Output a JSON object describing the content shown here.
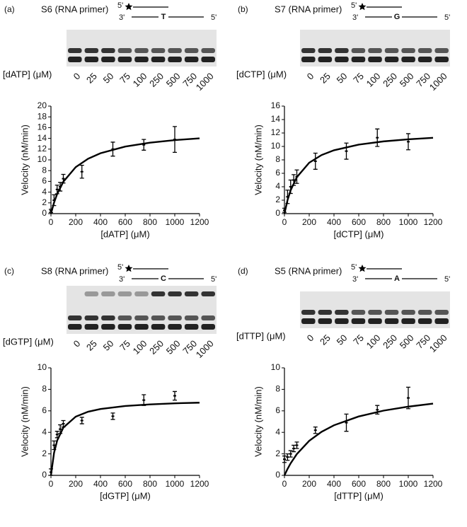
{
  "chart_data": [
    {
      "type": "scatter",
      "panel": "(a)",
      "primer": "S6 (RNA primer)",
      "template": {
        "top_5": "5'",
        "bottom_3": "3'",
        "base": "T",
        "bottom_5": "5'"
      },
      "gel_label": "[dATP] (μM)",
      "lanes": [
        "0",
        "25",
        "50",
        "75",
        "100",
        "250",
        "500",
        "750",
        "1000"
      ],
      "x_label": "[dATP] (μM)",
      "y_label": "Velocity (nM/min)",
      "x": [
        0,
        25,
        50,
        75,
        100,
        250,
        500,
        750,
        1000
      ],
      "values": [
        0.5,
        2.5,
        4.5,
        5,
        6.5,
        7.8,
        12,
        12.8,
        13.8
      ],
      "errors": [
        0.3,
        1,
        0.8,
        0.8,
        0.8,
        1.2,
        1.3,
        1,
        2.4
      ],
      "fit_x": [
        0,
        25,
        50,
        100,
        200,
        300,
        400,
        600,
        800,
        1000,
        1200
      ],
      "fit_values": [
        0,
        2.05,
        3.64,
        5.93,
        8.65,
        10.21,
        11.23,
        12.47,
        13.2,
        13.68,
        14.01
      ],
      "xlim": [
        0,
        1200
      ],
      "xticks": [
        0,
        200,
        400,
        600,
        800,
        1000,
        1200
      ],
      "ylim": [
        0,
        20
      ],
      "yticks": [
        0,
        2,
        4,
        6,
        8,
        10,
        12,
        14,
        16,
        18,
        20
      ],
      "color": "#000000"
    },
    {
      "type": "scatter",
      "panel": "(b)",
      "primer": "S7 (RNA primer)",
      "template": {
        "top_5": "5'",
        "bottom_3": "3'",
        "base": "G",
        "bottom_5": "5'"
      },
      "gel_label": "[dCTP] (μM)",
      "lanes": [
        "0",
        "25",
        "50",
        "75",
        "100",
        "250",
        "500",
        "750",
        "1000"
      ],
      "x_label": "[dCTP] (μM)",
      "y_label": "Velocity (nM/min)",
      "x": [
        0,
        25,
        50,
        75,
        100,
        250,
        500,
        750,
        1000
      ],
      "values": [
        0.5,
        2.5,
        4,
        5,
        5.5,
        7.8,
        9.3,
        11.3,
        10.7
      ],
      "errors": [
        0.3,
        1,
        1,
        0.8,
        1,
        1.2,
        1.2,
        1.3,
        1.2
      ],
      "fit_x": [
        0,
        25,
        50,
        100,
        200,
        300,
        400,
        600,
        800,
        1000,
        1200
      ],
      "fit_values": [
        0,
        2.02,
        3.47,
        5.43,
        7.58,
        8.72,
        9.43,
        10.27,
        10.75,
        11.06,
        11.28
      ],
      "xlim": [
        0,
        1200
      ],
      "xticks": [
        0,
        200,
        400,
        600,
        800,
        1000,
        1200
      ],
      "ylim": [
        0,
        16
      ],
      "yticks": [
        0,
        2,
        4,
        6,
        8,
        10,
        12,
        14,
        16
      ],
      "color": "#000000"
    },
    {
      "type": "scatter",
      "panel": "(c)",
      "primer": "S8 (RNA primer)",
      "template": {
        "top_5": "5'",
        "bottom_3": "3'",
        "base": "C",
        "bottom_5": "5'"
      },
      "gel_label": "[dGTP] (μM)",
      "lanes": [
        "0",
        "25",
        "50",
        "75",
        "100",
        "250",
        "500",
        "750",
        "1000"
      ],
      "x_label": "[dGTP] (μM)",
      "y_label": "Velocity (nM/min)",
      "x": [
        0,
        25,
        50,
        75,
        100,
        250,
        500,
        750,
        1000
      ],
      "values": [
        0.3,
        2.8,
        3.8,
        4.3,
        4.8,
        5.1,
        5.5,
        7,
        7.4
      ],
      "errors": [
        0.3,
        0.4,
        0.3,
        0.4,
        0.3,
        0.3,
        0.3,
        0.5,
        0.4
      ],
      "fit_x": [
        0,
        25,
        50,
        100,
        200,
        300,
        400,
        600,
        800,
        1000,
        1200
      ],
      "fit_values": [
        0,
        2.09,
        3.23,
        4.44,
        5.46,
        5.92,
        6.17,
        6.45,
        6.6,
        6.7,
        6.76
      ],
      "xlim": [
        0,
        1200
      ],
      "xticks": [
        0,
        200,
        400,
        600,
        800,
        1000,
        1200
      ],
      "ylim": [
        0,
        10
      ],
      "yticks": [
        0,
        2,
        4,
        6,
        8,
        10
      ],
      "color": "#000000"
    },
    {
      "type": "scatter",
      "panel": "(d)",
      "primer": "S5 (RNA primer)",
      "template": {
        "top_5": "5'",
        "bottom_3": "3'",
        "base": "A",
        "bottom_5": "5'"
      },
      "gel_label": "[dTTP] (μM)",
      "lanes": [
        "0",
        "25",
        "50",
        "75",
        "100",
        "250",
        "500",
        "750",
        "1000"
      ],
      "x_label": "[dTTP] (μM)",
      "y_label": "Velocity (nM/min)",
      "x": [
        0,
        25,
        50,
        75,
        100,
        250,
        500,
        750,
        1000
      ],
      "values": [
        1.5,
        1.7,
        2,
        2.5,
        2.8,
        4.2,
        4.9,
        6.1,
        7.2
      ],
      "errors": [
        0.3,
        0.3,
        0.3,
        0.3,
        0.3,
        0.3,
        0.8,
        0.4,
        1
      ],
      "fit_x": [
        0,
        25,
        50,
        100,
        200,
        300,
        400,
        600,
        800,
        1000,
        1200
      ],
      "fit_values": [
        0,
        0.6,
        1.12,
        1.98,
        3.21,
        4.05,
        4.66,
        5.48,
        6.02,
        6.39,
        6.67
      ],
      "xlim": [
        0,
        1200
      ],
      "xticks": [
        0,
        200,
        400,
        600,
        800,
        1000,
        1200
      ],
      "ylim": [
        0,
        10
      ],
      "yticks": [
        0,
        2,
        4,
        6,
        8,
        10
      ],
      "color": "#000000"
    }
  ]
}
